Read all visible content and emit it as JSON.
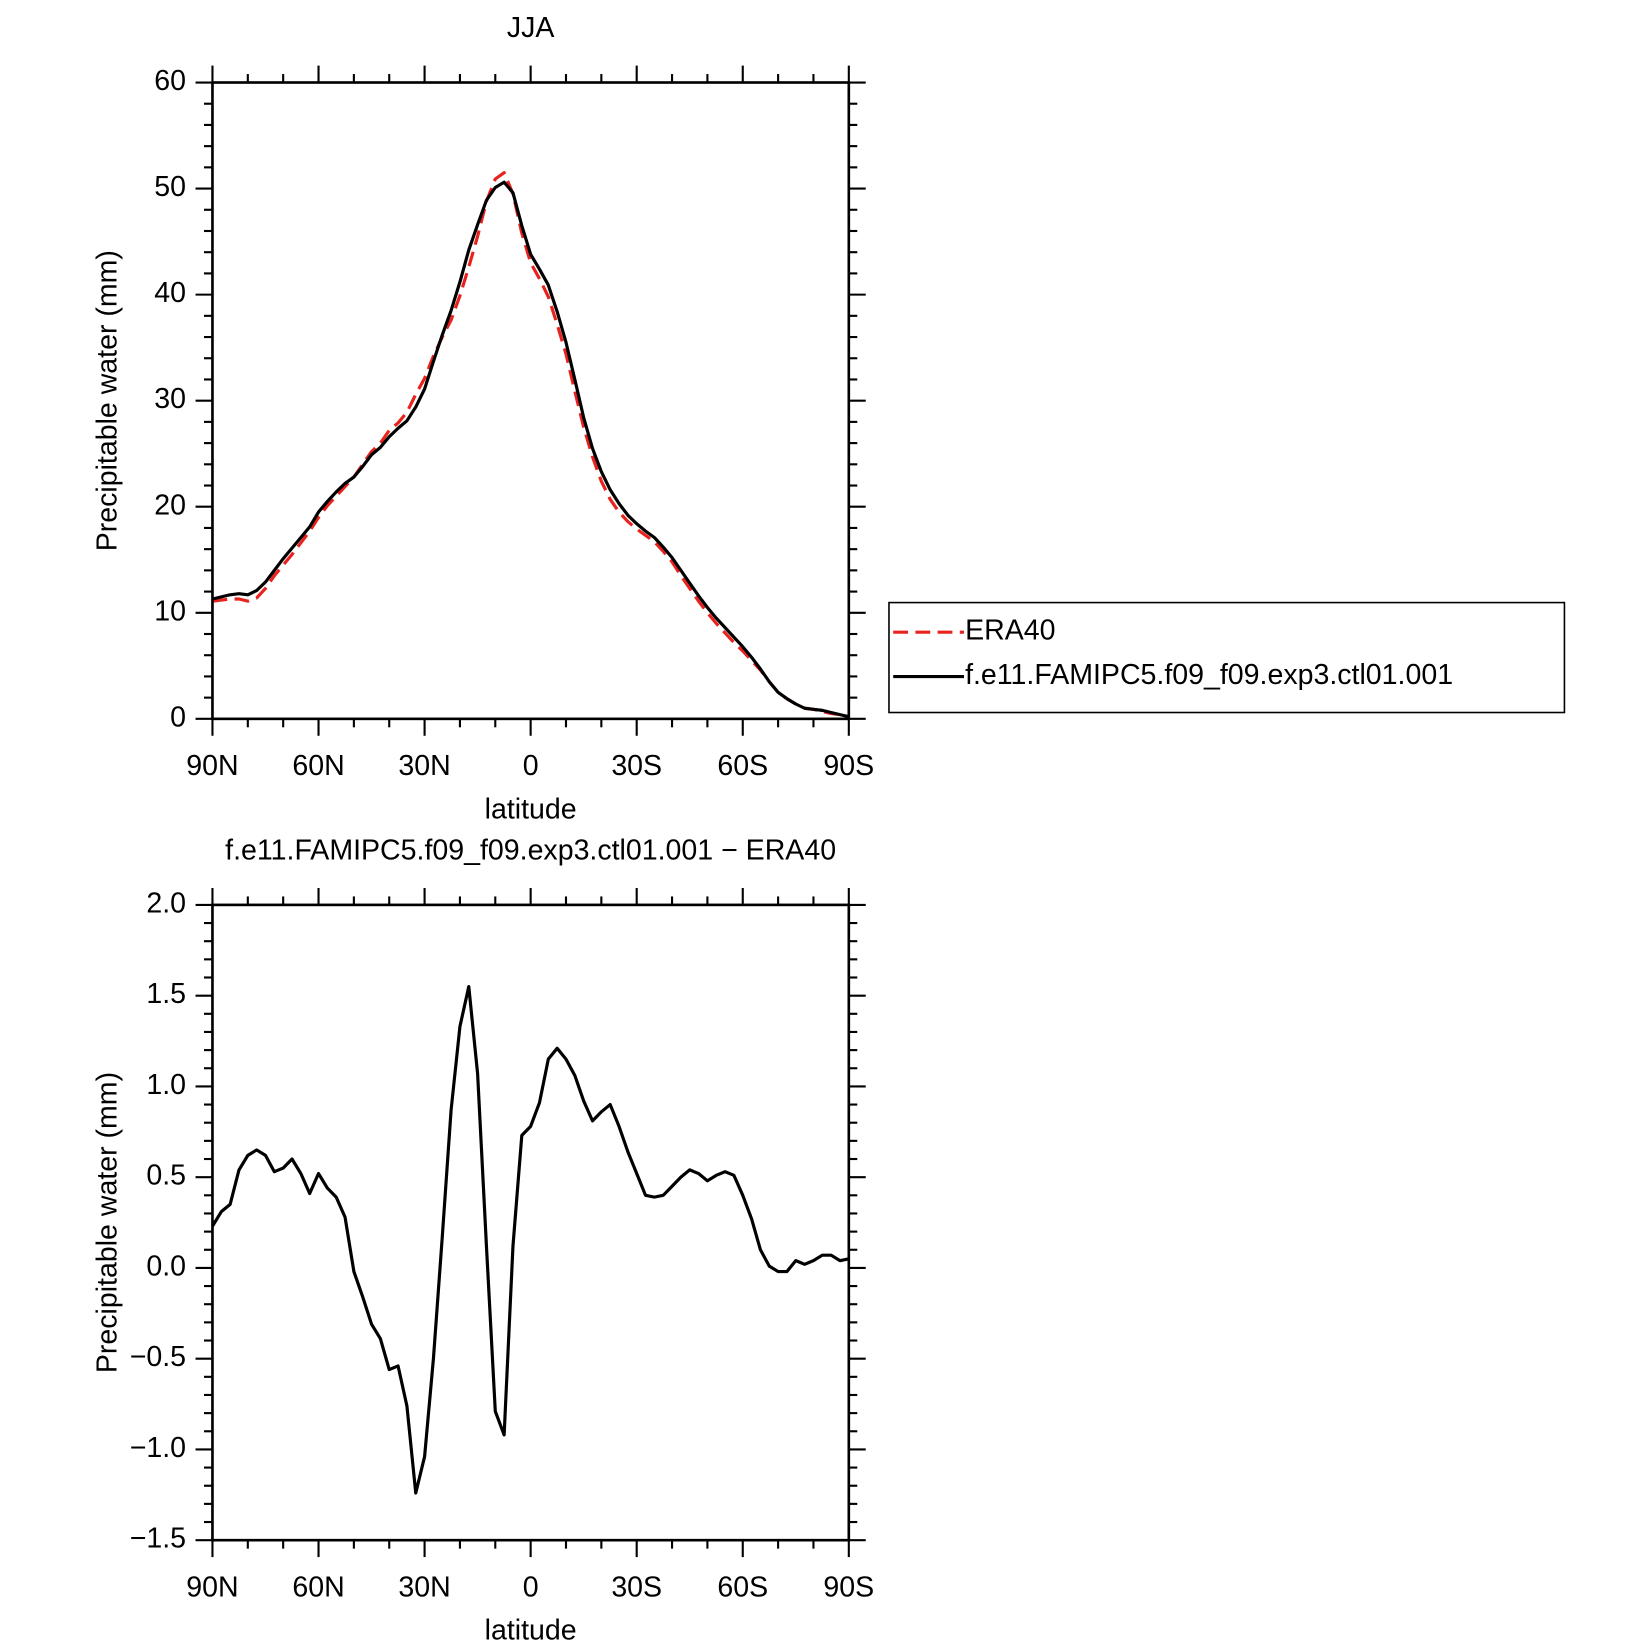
{
  "chart_data": [
    {
      "type": "line",
      "title": "JJA",
      "xlabel": "latitude",
      "ylabel": "Precipitable water (mm)",
      "x": [
        90,
        87.5,
        85,
        82.5,
        80,
        77.5,
        75,
        72.5,
        70,
        67.5,
        65,
        62.5,
        60,
        57.5,
        55,
        52.5,
        50,
        47.5,
        45,
        42.5,
        40,
        37.5,
        35,
        32.5,
        30,
        27.5,
        25,
        22.5,
        20,
        17.5,
        15,
        12.5,
        10,
        7.5,
        5,
        2.5,
        0,
        -2.5,
        -5,
        -7.5,
        -10,
        -12.5,
        -15,
        -17.5,
        -20,
        -22.5,
        -25,
        -27.5,
        -30,
        -32.5,
        -35,
        -37.5,
        -40,
        -42.5,
        -45,
        -47.5,
        -50,
        -52.5,
        -55,
        -57.5,
        -60,
        -62.5,
        -65,
        -67.5,
        -70,
        -72.5,
        -75,
        -77.5,
        -80,
        -82.5,
        -85,
        -87.5,
        -90
      ],
      "series": [
        {
          "name": "ERA40",
          "color": "#e8221c",
          "linestyle": "dashed",
          "values": [
            11.1,
            11.2,
            11.3,
            11.3,
            11.1,
            11.4,
            12.3,
            13.5,
            14.5,
            15.5,
            16.6,
            17.7,
            19.0,
            20.1,
            21.0,
            21.9,
            22.8,
            24.0,
            25.2,
            26.0,
            27.2,
            27.9,
            28.9,
            30.6,
            32.1,
            34.2,
            36.0,
            37.6,
            39.9,
            42.6,
            45.5,
            48.8,
            50.9,
            51.5,
            49.5,
            45.8,
            43.0,
            41.5,
            39.8,
            37.2,
            34.4,
            30.9,
            27.5,
            24.7,
            22.4,
            20.7,
            19.5,
            18.6,
            17.9,
            17.3,
            16.7,
            15.8,
            14.8,
            13.5,
            12.3,
            11.1,
            10.0,
            9.0,
            8.1,
            7.2,
            6.4,
            5.5,
            4.6,
            3.5,
            2.5,
            1.9,
            1.4,
            1.0,
            0.9,
            0.7,
            0.5,
            0.4,
            0.2
          ]
        },
        {
          "name": "f.e11.FAMIPC5.f09_f09.exp3.ctl01.001",
          "color": "#000000",
          "linestyle": "solid",
          "values": [
            11.3,
            11.5,
            11.7,
            11.8,
            11.7,
            12.1,
            12.9,
            14.0,
            15.1,
            16.1,
            17.1,
            18.1,
            19.5,
            20.5,
            21.4,
            22.2,
            22.8,
            23.8,
            24.9,
            25.6,
            26.6,
            27.4,
            28.1,
            29.4,
            31.1,
            33.7,
            36.2,
            38.5,
            41.2,
            44.2,
            46.6,
            48.9,
            50.1,
            50.6,
            49.6,
            46.5,
            43.8,
            42.4,
            40.9,
            38.4,
            35.5,
            32.0,
            28.4,
            25.5,
            23.3,
            21.6,
            20.3,
            19.2,
            18.4,
            17.7,
            17.1,
            16.2,
            15.2,
            14.0,
            12.8,
            11.6,
            10.5,
            9.5,
            8.6,
            7.7,
            6.8,
            5.8,
            4.7,
            3.5,
            2.5,
            1.9,
            1.4,
            1.0,
            0.9,
            0.8,
            0.6,
            0.4,
            0.2
          ]
        }
      ],
      "xlim": [
        90,
        -90
      ],
      "xticks": [
        {
          "value": 90,
          "label": "90N"
        },
        {
          "value": 60,
          "label": "60N"
        },
        {
          "value": 30,
          "label": "30N"
        },
        0,
        {
          "value": -30,
          "label": "30S"
        },
        {
          "value": -60,
          "label": "60S"
        },
        {
          "value": -90,
          "label": "90S"
        }
      ],
      "ylim": [
        0,
        60
      ],
      "yticks": [
        0,
        10,
        20,
        30,
        40,
        50,
        60
      ],
      "legend": "right"
    },
    {
      "type": "line",
      "title": "f.e11.FAMIPC5.f09_f09.exp3.ctl01.001 − ERA40",
      "xlabel": "latitude",
      "ylabel": "Precipitable water (mm)",
      "x": [
        90,
        87.5,
        85,
        82.5,
        80,
        77.5,
        75,
        72.5,
        70,
        67.5,
        65,
        62.5,
        60,
        57.5,
        55,
        52.5,
        50,
        47.5,
        45,
        42.5,
        40,
        37.5,
        35,
        32.5,
        30,
        27.5,
        25,
        22.5,
        20,
        17.5,
        15,
        12.5,
        10,
        7.5,
        5,
        2.5,
        0,
        -2.5,
        -5,
        -7.5,
        -10,
        -12.5,
        -15,
        -17.5,
        -20,
        -22.5,
        -25,
        -27.5,
        -30,
        -32.5,
        -35,
        -37.5,
        -40,
        -42.5,
        -45,
        -47.5,
        -50,
        -52.5,
        -55,
        -57.5,
        -60,
        -62.5,
        -65,
        -67.5,
        -70,
        -72.5,
        -75,
        -77.5,
        -80,
        -82.5,
        -85,
        -87.5,
        -90
      ],
      "values": [
        0.23,
        0.31,
        0.35,
        0.54,
        0.62,
        0.65,
        0.62,
        0.53,
        0.55,
        0.6,
        0.52,
        0.41,
        0.52,
        0.44,
        0.39,
        0.28,
        -0.02,
        -0.16,
        -0.31,
        -0.39,
        -0.56,
        -0.54,
        -0.76,
        -1.24,
        -1.04,
        -0.5,
        0.17,
        0.87,
        1.33,
        1.55,
        1.07,
        0.12,
        -0.79,
        -0.92,
        0.12,
        0.73,
        0.78,
        0.91,
        1.15,
        1.21,
        1.15,
        1.06,
        0.92,
        0.81,
        0.86,
        0.9,
        0.78,
        0.64,
        0.52,
        0.4,
        0.39,
        0.4,
        0.45,
        0.5,
        0.54,
        0.52,
        0.48,
        0.51,
        0.53,
        0.51,
        0.4,
        0.27,
        0.1,
        0.01,
        -0.02,
        -0.02,
        0.04,
        0.02,
        0.04,
        0.07,
        0.07,
        0.04,
        0.05
      ],
      "color": "#000000",
      "xlim": [
        90,
        -90
      ],
      "xticks": [
        {
          "value": 90,
          "label": "90N"
        },
        {
          "value": 60,
          "label": "60N"
        },
        {
          "value": 30,
          "label": "30N"
        },
        0,
        {
          "value": -30,
          "label": "30S"
        },
        {
          "value": -60,
          "label": "60S"
        },
        {
          "value": -90,
          "label": "90S"
        }
      ],
      "ylim": [
        -1.5,
        2.0
      ],
      "yticks": [
        {
          "value": -1.5,
          "label": "−1.5"
        },
        {
          "value": -1.0,
          "label": "−1.0"
        },
        {
          "value": -0.5,
          "label": "−0.5"
        },
        {
          "value": 0,
          "label": "0.0"
        },
        0.5,
        {
          "value": 1.0,
          "label": "1.0"
        },
        1.5,
        {
          "value": 2.0,
          "label": "2.0"
        }
      ]
    }
  ]
}
